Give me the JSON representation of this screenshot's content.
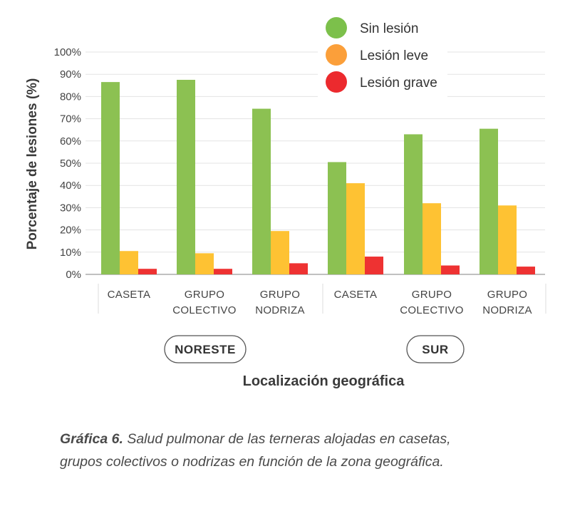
{
  "chart_data": {
    "type": "bar",
    "ylabel": "Porcentaje de lesiones (%)",
    "xlabel": "Localización geográfica",
    "ylim": [
      0,
      100
    ],
    "y_ticks": [
      "0%",
      "10%",
      "20%",
      "30%",
      "40%",
      "50%",
      "60%",
      "70%",
      "80%",
      "90%",
      "100%"
    ],
    "grid": true,
    "legend_position": "top-right",
    "groups": [
      {
        "name": "NORESTE",
        "categories": [
          [
            "CASETA"
          ],
          [
            "GRUPO",
            "COLECTIVO"
          ],
          [
            "GRUPO",
            "NODRIZA"
          ]
        ]
      },
      {
        "name": "SUR",
        "categories": [
          [
            "CASETA"
          ],
          [
            "GRUPO",
            "COLECTIVO"
          ],
          [
            "GRUPO",
            "NODRIZA"
          ]
        ]
      }
    ],
    "series": [
      {
        "name": "Sin lesión",
        "color": "#8cc152",
        "legend_color": "#7cc04b",
        "values": [
          86.5,
          87.5,
          74.5,
          50.5,
          63,
          65.5
        ]
      },
      {
        "name": "Lesión leve",
        "color": "#fec233",
        "legend_color": "#fb9f3a",
        "values": [
          10.5,
          9.5,
          19.5,
          41,
          32,
          31
        ]
      },
      {
        "name": "Lesión grave",
        "color": "#ee3232",
        "legend_color": "#ec2a2e",
        "values": [
          2.5,
          2.5,
          5,
          8,
          4,
          3.5
        ]
      }
    ]
  },
  "caption": {
    "label": "Gráfica 6.",
    "line1": "Salud pulmonar de las terneras alojadas en casetas,",
    "line2": "grupos colectivos o nodrizas en función de la zona geográfica."
  }
}
